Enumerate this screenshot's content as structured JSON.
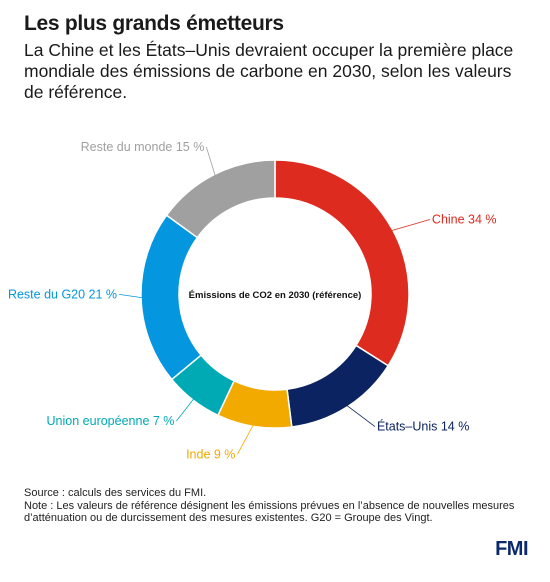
{
  "header": {
    "title": "Les plus grands émetteurs",
    "subtitle": "La Chine et les États–Unis devraient occuper la première place mondiale des émissions de carbone en 2030, selon les valeurs de référence."
  },
  "chart_data": {
    "type": "pie",
    "donut": true,
    "center_label": "Émissions de CO2 en 2030 (référence)",
    "slices": [
      {
        "label": "Chine 34 %",
        "value": 34,
        "color": "#dd2b1f"
      },
      {
        "label": "États–Unis 14 %",
        "value": 14,
        "color": "#0b2461"
      },
      {
        "label": "Inde 9 %",
        "value": 9,
        "color": "#f2a900"
      },
      {
        "label": "Union européenne 7 %",
        "value": 7,
        "color": "#00aab5"
      },
      {
        "label": "Reste du G20 21 %",
        "value": 21,
        "color": "#0496de"
      },
      {
        "label": "Reste du monde 15 %",
        "value": 15,
        "color": "#a0a0a0"
      }
    ]
  },
  "footer": {
    "source": "Source : calculs des services du FMI.",
    "note": "Note : Les valeurs de référence désignent les émissions prévues en l’absence de nouvelles mesures d’atténuation ou de durcissement des mesures existentes. G20 = Groupe des Vingt.",
    "logo": "FMI"
  }
}
